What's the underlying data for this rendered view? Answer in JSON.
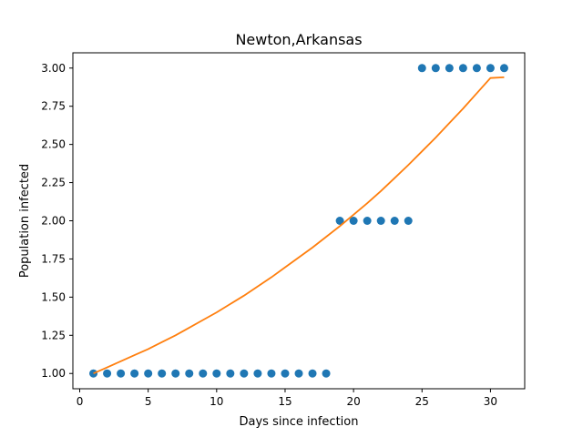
{
  "chart_data": {
    "type": "scatter",
    "title": "Newton,Arkansas",
    "xlabel": "Days since infection",
    "ylabel": "Population infected",
    "xlim": [
      -0.5,
      32.5
    ],
    "ylim": [
      0.9,
      3.1
    ],
    "xticks": [
      0,
      5,
      10,
      15,
      20,
      25,
      30
    ],
    "yticks": [
      1.0,
      1.25,
      1.5,
      1.75,
      2.0,
      2.25,
      2.5,
      2.75,
      3.0
    ],
    "xtick_labels": [
      "0",
      "5",
      "10",
      "15",
      "20",
      "25",
      "30"
    ],
    "ytick_labels": [
      "1.00",
      "1.25",
      "1.50",
      "1.75",
      "2.00",
      "2.25",
      "2.50",
      "2.75",
      "3.00"
    ],
    "grid": false,
    "series": [
      {
        "kind": "scatter",
        "color": "#1f77b4",
        "x": [
          1,
          2,
          3,
          4,
          5,
          6,
          7,
          8,
          9,
          10,
          11,
          12,
          13,
          14,
          15,
          16,
          17,
          18,
          19,
          20,
          21,
          22,
          23,
          24,
          25,
          26,
          27,
          28,
          29,
          30,
          31
        ],
        "y": [
          1,
          1,
          1,
          1,
          1,
          1,
          1,
          1,
          1,
          1,
          1,
          1,
          1,
          1,
          1,
          1,
          1,
          1,
          2,
          2,
          2,
          2,
          2,
          2,
          3,
          3,
          3,
          3,
          3,
          3,
          3
        ]
      },
      {
        "kind": "line",
        "color": "#ff7f0e",
        "x": [
          1,
          2,
          3,
          4,
          5,
          6,
          7,
          8,
          9,
          10,
          11,
          12,
          13,
          14,
          15,
          16,
          17,
          18,
          19,
          20,
          21,
          22,
          23,
          24,
          25,
          26,
          27,
          28,
          29,
          30,
          31
        ],
        "y": [
          1.0,
          1.04,
          1.08,
          1.12,
          1.16,
          1.205,
          1.25,
          1.3,
          1.35,
          1.4,
          1.455,
          1.51,
          1.57,
          1.63,
          1.695,
          1.76,
          1.825,
          1.895,
          1.965,
          2.04,
          2.115,
          2.195,
          2.28,
          2.365,
          2.455,
          2.545,
          2.64,
          2.735,
          2.835,
          2.935,
          2.94
        ]
      }
    ]
  }
}
